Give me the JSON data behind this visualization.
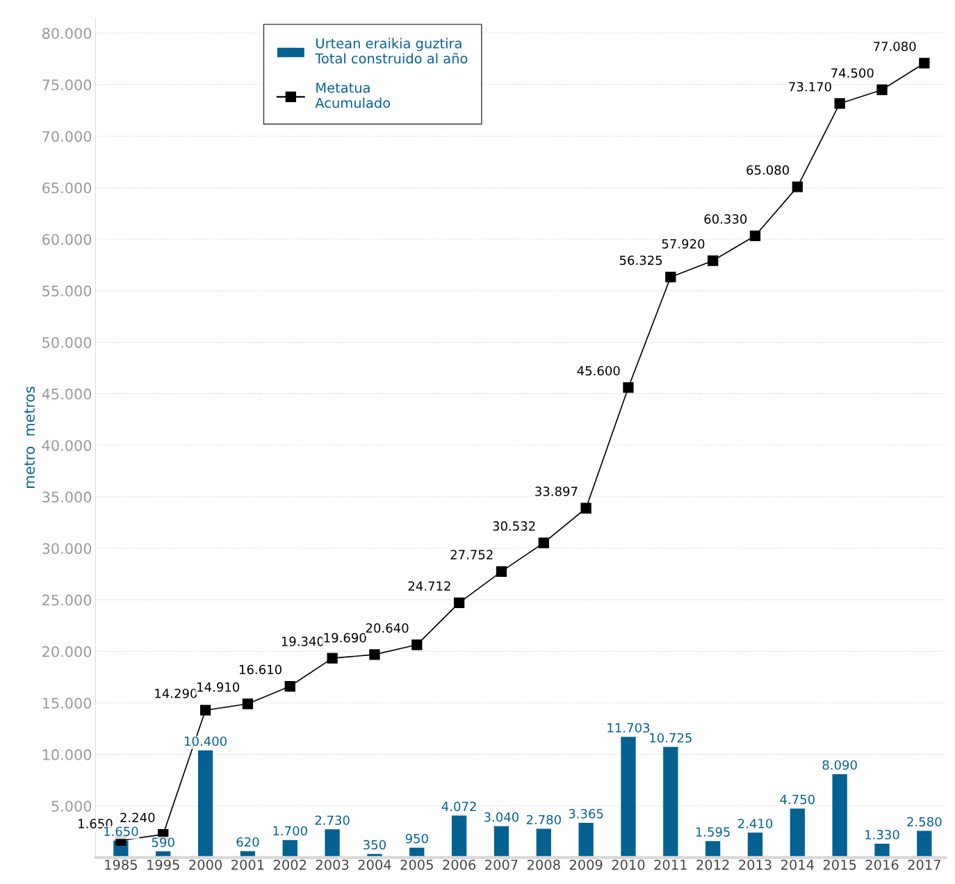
{
  "chart_data": {
    "type": "bar",
    "ylabel": "metro  metros",
    "categories": [
      "1985",
      "1995",
      "2000",
      "2001",
      "2002",
      "2003",
      "2004",
      "2005",
      "2006",
      "2007",
      "2008",
      "2009",
      "2010",
      "2011",
      "2012",
      "2013",
      "2014",
      "2015",
      "2016",
      "2017"
    ],
    "series": [
      {
        "name": "Urtean eraikia guztira\nTotal construido al año",
        "color": "#056191",
        "values": [
          1650,
          590,
          10400,
          620,
          1700,
          2730,
          350,
          950,
          4072,
          3040,
          2780,
          3365,
          11703,
          10725,
          1595,
          2410,
          4750,
          8090,
          1330,
          2580
        ],
        "value_labels": [
          "1.650",
          "590",
          "10.400",
          "620",
          "1.700",
          "2.730",
          "350",
          "950",
          "4.072",
          "3.040",
          "2.780",
          "3.365",
          "11.703",
          "10.725",
          "1.595",
          "2.410",
          "4.750",
          "8.090",
          "1.330",
          "2.580"
        ]
      },
      {
        "name": "Metatua\nAcumulado",
        "type": "line",
        "color": "#000000",
        "marker": "square",
        "line_style": "solid",
        "values": [
          1650,
          2240,
          14290,
          14910,
          16610,
          19340,
          19690,
          20640,
          24712,
          27752,
          30532,
          33897,
          45600,
          56325,
          57920,
          60330,
          65080,
          73170,
          74500,
          77080
        ],
        "value_labels": [
          "1.650",
          "2.240",
          "14.290",
          "14.910",
          "16.610",
          "19.340",
          "19.690",
          "20.640",
          "24.712",
          "27.752",
          "30.532",
          "33.897",
          "45.600",
          "56.325",
          "57.920",
          "60.330",
          "65.080",
          "73.170",
          "74.500",
          "77.080"
        ]
      }
    ],
    "ylim": [
      0,
      81500
    ],
    "yticks": [
      {
        "value": 5000,
        "label": "5.000"
      },
      {
        "value": 10000,
        "label": "10.000"
      },
      {
        "value": 15000,
        "label": "15.000"
      },
      {
        "value": 20000,
        "label": "20.000"
      },
      {
        "value": 25000,
        "label": "25.000"
      },
      {
        "value": 30000,
        "label": "30.000"
      },
      {
        "value": 35000,
        "label": "35.000"
      },
      {
        "value": 40000,
        "label": "40.000"
      },
      {
        "value": 45000,
        "label": "45.000"
      },
      {
        "value": 50000,
        "label": "50.000"
      },
      {
        "value": 55000,
        "label": "55.000"
      },
      {
        "value": 60000,
        "label": "60.000"
      },
      {
        "value": 65000,
        "label": "65.000"
      },
      {
        "value": 70000,
        "label": "70.000"
      },
      {
        "value": 75000,
        "label": "75.000"
      },
      {
        "value": 80000,
        "label": "80.000"
      }
    ],
    "grid": "y",
    "legend": "top left"
  }
}
